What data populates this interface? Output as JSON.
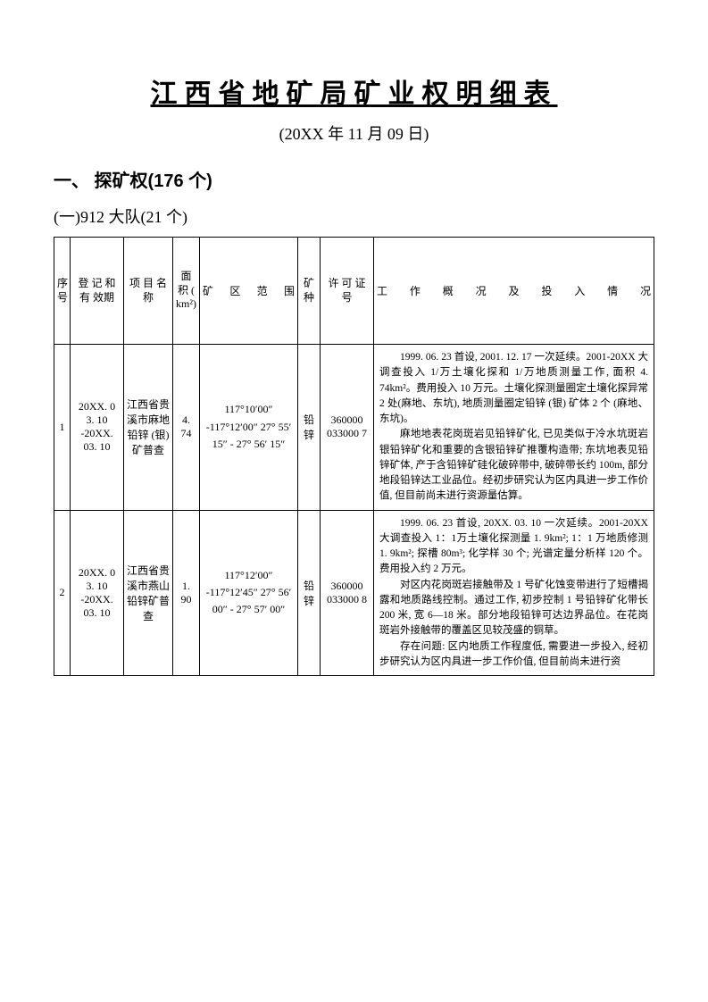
{
  "title": "江西省地矿局矿业权明细表",
  "subtitle": "(20XX 年 11 月 09 日)",
  "section_heading": "一、 探矿权(176 个)",
  "subsection_heading": "(一)912 大队(21 个)",
  "table": {
    "columns": {
      "idx": "序号",
      "date": "登 记 和 有 效期",
      "name": "项 目 名称",
      "area": "面积 ( km²)",
      "range": "矿 区 范 围",
      "type": "矿种",
      "license": "许 可 证 号",
      "desc": "工 作 概 况 及 投 入 情 况"
    },
    "rows": [
      {
        "idx": "1",
        "date": "20XX. 0 3. 10 -20XX. 03. 10",
        "name": "江西省贵溪市麻地铅锌 (银) 矿普查",
        "area": "4. 74",
        "range": "117°10′00″ -117°12′00″ 27° 55′ 15″ - 27° 56′ 15″",
        "type": "铅锌",
        "license": "360000 033000 7",
        "desc_p1": "1999. 06. 23 首设, 2001. 12. 17 一次延续。2001-20XX 大调查投入 1/万土壤化探和 1/万地质测量工作, 面积 4. 74km²。费用投入 10 万元。土壤化探测量圈定土壤化探异常 2 处(麻地、东坑), 地质测量圈定铅锌 (银) 矿体 2 个 (麻地、东坑)。",
        "desc_p2": "麻地地表花岗斑岩见铅锌矿化, 已见类似于冷水坑斑岩银铅锌矿化和重要的含银铅锌矿推覆构造带; 东坑地表见铅锌矿体, 产于含铅锌矿硅化破碎带中, 破碎带长约 100m, 部分地段铅锌达工业品位。经初步研究认为区内具进一步工作价值, 但目前尚未进行资源量估算。"
      },
      {
        "idx": "2",
        "date": "20XX. 0 3. 10 -20XX. 03. 10",
        "name": "江西省贵溪市燕山铅锌矿普查",
        "area": "1. 90",
        "range": "117°12′00″ -117°12′45″ 27° 56′ 00″ - 27° 57′ 00″",
        "type": "铅锌",
        "license": "360000 033000 8",
        "desc_p1": "1999. 06. 23 首设, 20XX. 03. 10 一次延续。2001-20XX 大调查投入 1：1万土壤化探测量 1. 9km²; 1：1 万地质修测 1. 9km²; 探槽 80m³; 化学样 30 个; 光谱定量分析样 120 个。费用投入约 2 万元。",
        "desc_p2": "对区内花岗斑岩接触带及 1 号矿化蚀变带进行了短槽揭露和地质路线控制。通过工作, 初步控制 1 号铅锌矿化带长 200 米, 宽 6—18 米。部分地段铅锌可达边界品位。在花岗斑岩外接触带的覆盖区见较茂盛的铜草。",
        "desc_p3": "存在问题: 区内地质工作程度低, 需要进一步投入, 经初步研究认为区内具进一步工作价值, 但目前尚未进行资"
      }
    ]
  },
  "colors": {
    "text": "#000000",
    "background": "#ffffff",
    "border": "#000000"
  }
}
